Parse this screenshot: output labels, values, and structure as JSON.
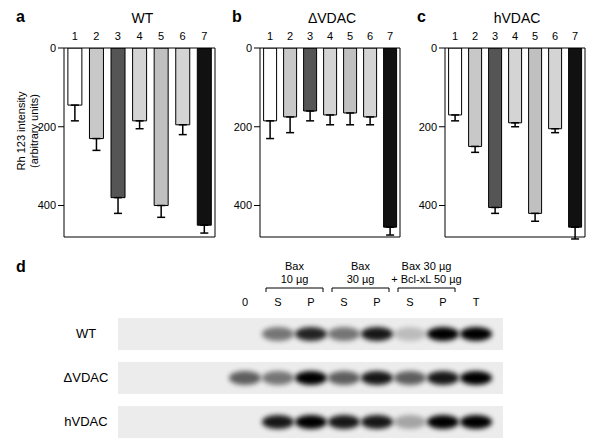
{
  "chart_data": [
    {
      "panel": "a",
      "type": "bar",
      "title": "WT",
      "y_label": "Rh 123 intensity (arbitrary units)",
      "categories": [
        "1",
        "2",
        "3",
        "4",
        "5",
        "6",
        "7"
      ],
      "values": [
        145,
        230,
        380,
        185,
        400,
        195,
        450
      ],
      "errors": [
        40,
        30,
        40,
        20,
        30,
        25,
        20
      ],
      "colors": [
        "#ffffff",
        "#c8c8c8",
        "#555555",
        "#d4d4d4",
        "#c0c0c0",
        "#d4d4d4",
        "#111111"
      ],
      "ylim": [
        0,
        480
      ],
      "yticks": [
        0,
        200,
        400
      ]
    },
    {
      "panel": "b",
      "type": "bar",
      "title": "ΔVDAC",
      "categories": [
        "1",
        "2",
        "3",
        "4",
        "5",
        "6",
        "7"
      ],
      "values": [
        185,
        175,
        160,
        170,
        165,
        175,
        455
      ],
      "errors": [
        45,
        40,
        25,
        25,
        30,
        20,
        20
      ],
      "colors": [
        "#ffffff",
        "#c8c8c8",
        "#555555",
        "#d4d4d4",
        "#c0c0c0",
        "#d4d4d4",
        "#111111"
      ],
      "ylim": [
        0,
        480
      ],
      "yticks": [
        0,
        200,
        400
      ]
    },
    {
      "panel": "c",
      "type": "bar",
      "title": "hVDAC",
      "categories": [
        "1",
        "2",
        "3",
        "4",
        "5",
        "6",
        "7"
      ],
      "values": [
        170,
        250,
        405,
        190,
        420,
        205,
        455
      ],
      "errors": [
        15,
        15,
        15,
        10,
        20,
        10,
        30
      ],
      "colors": [
        "#ffffff",
        "#c8c8c8",
        "#555555",
        "#d4d4d4",
        "#c0c0c0",
        "#d4d4d4",
        "#111111"
      ],
      "ylim": [
        0,
        480
      ],
      "yticks": [
        0,
        200,
        400
      ]
    }
  ],
  "blot": {
    "panel": "d",
    "lanes": [
      "0",
      "S",
      "P",
      "S",
      "P",
      "S",
      "P",
      "T"
    ],
    "groups": [
      {
        "lines": [
          "Bax",
          "10 µg"
        ],
        "lanes": [
          1,
          2
        ]
      },
      {
        "lines": [
          "Bax",
          "30 µg"
        ],
        "lanes": [
          3,
          4
        ]
      },
      {
        "lines": [
          "Bax 30 µg",
          "+ Bcl-xL 50 µg"
        ],
        "lanes": [
          5,
          6
        ]
      }
    ],
    "rows": [
      {
        "label": "WT",
        "band_intensity": [
          0,
          0.5,
          0.85,
          0.5,
          0.9,
          0.2,
          1.0,
          1.0
        ]
      },
      {
        "label": "ΔVDAC",
        "band_intensity": [
          0.6,
          0.5,
          1.0,
          0.6,
          0.9,
          0.6,
          0.9,
          1.0
        ]
      },
      {
        "label": "hVDAC",
        "band_intensity": [
          0,
          0.9,
          1.0,
          0.9,
          0.9,
          0.3,
          1.0,
          1.0
        ]
      }
    ]
  }
}
